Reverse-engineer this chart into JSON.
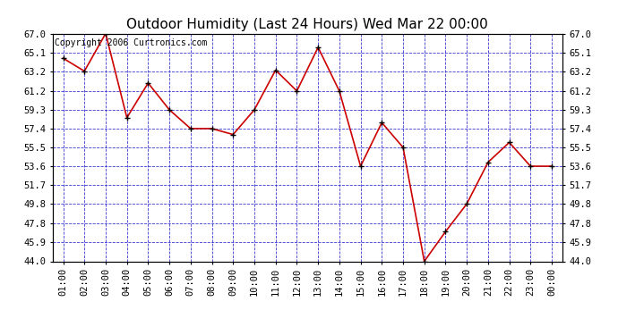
{
  "title": "Outdoor Humidity (Last 24 Hours) Wed Mar 22 00:00",
  "copyright": "Copyright 2006 Curtronics.com",
  "x_labels": [
    "01:00",
    "02:00",
    "03:00",
    "04:00",
    "05:00",
    "06:00",
    "07:00",
    "08:00",
    "09:00",
    "10:00",
    "11:00",
    "12:00",
    "13:00",
    "14:00",
    "15:00",
    "16:00",
    "17:00",
    "18:00",
    "19:00",
    "20:00",
    "21:00",
    "22:00",
    "23:00",
    "00:00"
  ],
  "y_values": [
    64.5,
    63.2,
    67.0,
    58.5,
    62.0,
    59.3,
    57.4,
    57.4,
    56.8,
    59.3,
    63.3,
    61.2,
    65.6,
    61.2,
    53.6,
    58.0,
    55.5,
    44.0,
    47.0,
    49.8,
    54.0,
    56.0,
    53.6,
    53.6
  ],
  "y_ticks": [
    44.0,
    45.9,
    47.8,
    49.8,
    51.7,
    53.6,
    55.5,
    57.4,
    59.3,
    61.2,
    63.2,
    65.1,
    67.0
  ],
  "y_min": 44.0,
  "y_max": 67.0,
  "line_color": "#cc0000",
  "marker_color": "#000000",
  "bg_color": "#ffffff",
  "plot_bg_color": "#ffffff",
  "grid_color": "#2222cc",
  "title_fontsize": 11,
  "copyright_fontsize": 7,
  "tick_fontsize": 7.5,
  "title_color": "#000000"
}
